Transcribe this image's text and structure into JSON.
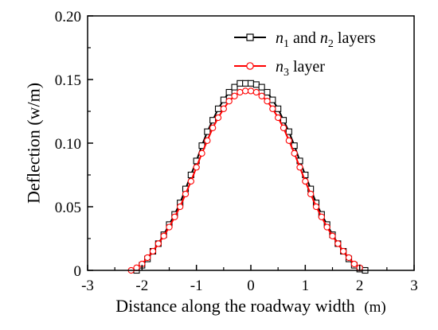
{
  "chart_data": {
    "type": "line",
    "title": "",
    "xlabel": "Distance along the roadway width",
    "xlabel_unit": "(m)",
    "ylabel": "Deflection (w/m)",
    "xlim": [
      -3,
      3
    ],
    "ylim": [
      0,
      0.2
    ],
    "x_ticks": [
      -3,
      -2,
      -1,
      0,
      1,
      2,
      3
    ],
    "x_tick_labels": [
      "-3",
      "-2",
      "-1",
      "0",
      "1",
      "2",
      "3"
    ],
    "y_ticks": [
      0,
      0.05,
      0.1,
      0.15,
      0.2
    ],
    "y_tick_labels": [
      "0",
      "0.05",
      "0.10",
      "0.15",
      "0.20"
    ],
    "grid": false,
    "legend_position": "top-right",
    "series": [
      {
        "name": "n1 and n2 layers",
        "legend_parts": [
          {
            "t": "n",
            "style": "italic"
          },
          {
            "t": "1",
            "style": "sub"
          },
          {
            "t": " and ",
            "style": "normal"
          },
          {
            "t": "n",
            "style": "italic"
          },
          {
            "t": "2",
            "style": "sub"
          },
          {
            "t": " layers",
            "style": "normal"
          }
        ],
        "color": "#000000",
        "marker": "square",
        "x": [
          -2.1,
          -2.0,
          -1.9,
          -1.8,
          -1.7,
          -1.6,
          -1.5,
          -1.4,
          -1.3,
          -1.2,
          -1.1,
          -1.0,
          -0.9,
          -0.8,
          -0.7,
          -0.6,
          -0.5,
          -0.4,
          -0.3,
          -0.2,
          -0.1,
          0.0,
          0.1,
          0.2,
          0.3,
          0.4,
          0.5,
          0.6,
          0.7,
          0.8,
          0.9,
          1.0,
          1.1,
          1.2,
          1.3,
          1.4,
          1.5,
          1.6,
          1.7,
          1.8,
          1.9,
          2.0,
          2.1
        ],
        "y": [
          0.0,
          0.004,
          0.009,
          0.015,
          0.021,
          0.028,
          0.036,
          0.044,
          0.053,
          0.064,
          0.075,
          0.086,
          0.098,
          0.109,
          0.118,
          0.127,
          0.134,
          0.14,
          0.144,
          0.147,
          0.147,
          0.147,
          0.146,
          0.144,
          0.14,
          0.134,
          0.127,
          0.118,
          0.109,
          0.098,
          0.086,
          0.075,
          0.064,
          0.053,
          0.044,
          0.036,
          0.028,
          0.021,
          0.015,
          0.009,
          0.004,
          0.001,
          0.0
        ]
      },
      {
        "name": "n3 layer",
        "legend_parts": [
          {
            "t": "n",
            "style": "italic"
          },
          {
            "t": "3",
            "style": "sub"
          },
          {
            "t": " layer",
            "style": "normal"
          }
        ],
        "color": "#ff0000",
        "marker": "circle",
        "x": [
          -2.2,
          -2.1,
          -2.0,
          -1.9,
          -1.8,
          -1.7,
          -1.6,
          -1.5,
          -1.4,
          -1.3,
          -1.2,
          -1.1,
          -1.0,
          -0.9,
          -0.8,
          -0.7,
          -0.6,
          -0.5,
          -0.4,
          -0.3,
          -0.2,
          -0.1,
          0.0,
          0.1,
          0.2,
          0.3,
          0.4,
          0.5,
          0.6,
          0.7,
          0.8,
          0.9,
          1.0,
          1.1,
          1.2,
          1.3,
          1.4,
          1.5,
          1.6,
          1.7,
          1.8,
          1.9,
          2.0
        ],
        "y": [
          0.0,
          0.002,
          0.005,
          0.01,
          0.015,
          0.021,
          0.027,
          0.034,
          0.042,
          0.05,
          0.06,
          0.07,
          0.081,
          0.092,
          0.102,
          0.112,
          0.12,
          0.127,
          0.133,
          0.137,
          0.14,
          0.141,
          0.141,
          0.14,
          0.137,
          0.133,
          0.127,
          0.12,
          0.112,
          0.102,
          0.092,
          0.081,
          0.07,
          0.06,
          0.05,
          0.042,
          0.034,
          0.027,
          0.021,
          0.015,
          0.01,
          0.005,
          0.002
        ]
      }
    ]
  }
}
